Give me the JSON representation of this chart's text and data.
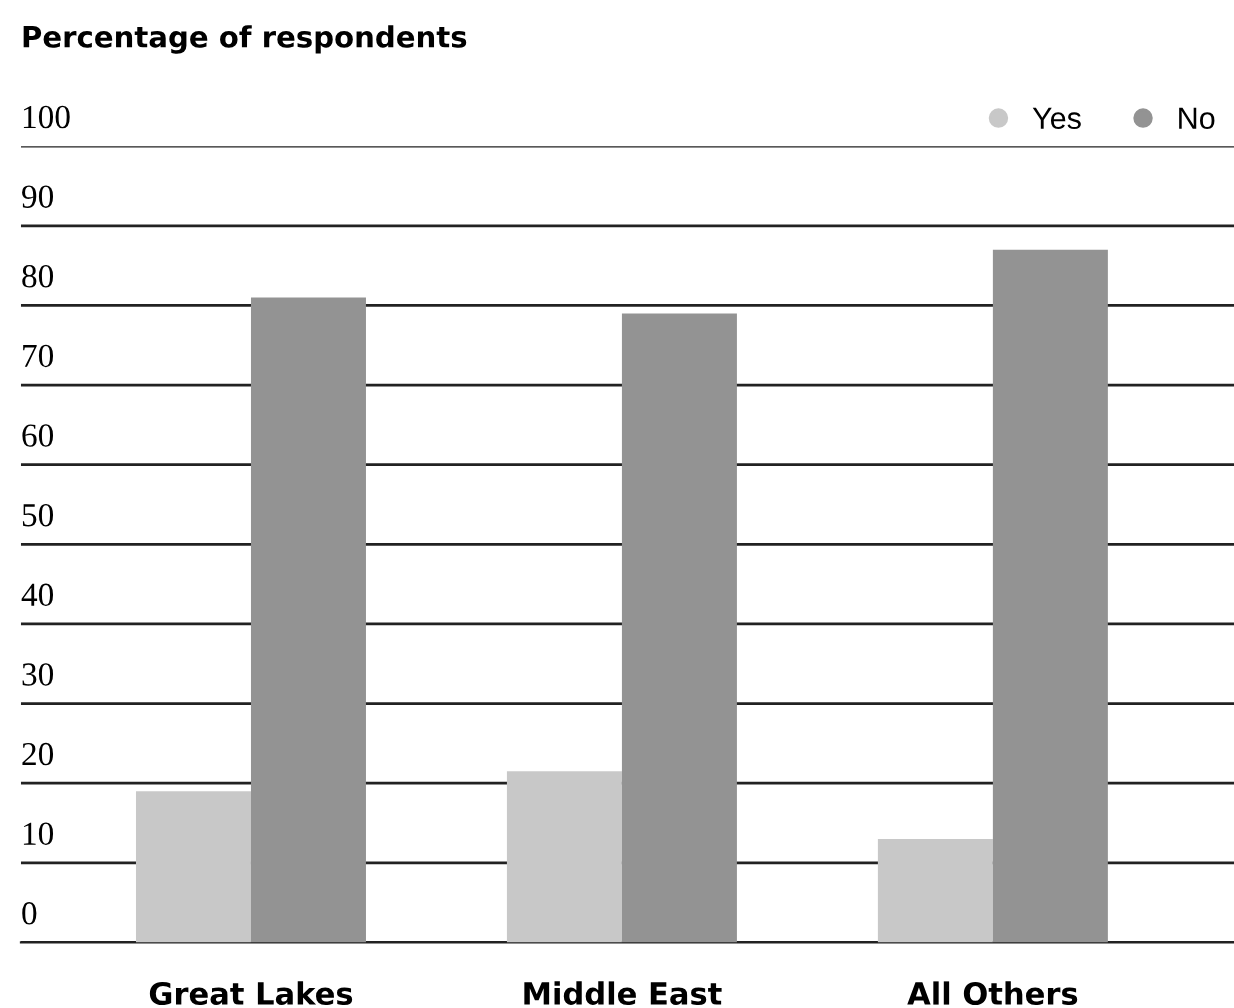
{
  "chart_data": {
    "type": "bar",
    "title": "Percentage of respondents",
    "categories": [
      "Great Lakes",
      "Middle East",
      "All Others"
    ],
    "series": [
      {
        "name": "Yes",
        "color": "#c8c8c8",
        "values": [
          19,
          21.5,
          13
        ]
      },
      {
        "name": "No",
        "color": "#939393",
        "values": [
          81,
          79,
          87
        ]
      }
    ],
    "ylim": [
      0,
      100
    ],
    "yticks": [
      0,
      10,
      20,
      30,
      40,
      50,
      60,
      70,
      80,
      90,
      100
    ],
    "grid": "y",
    "legend": "top right",
    "marker": "circle"
  }
}
